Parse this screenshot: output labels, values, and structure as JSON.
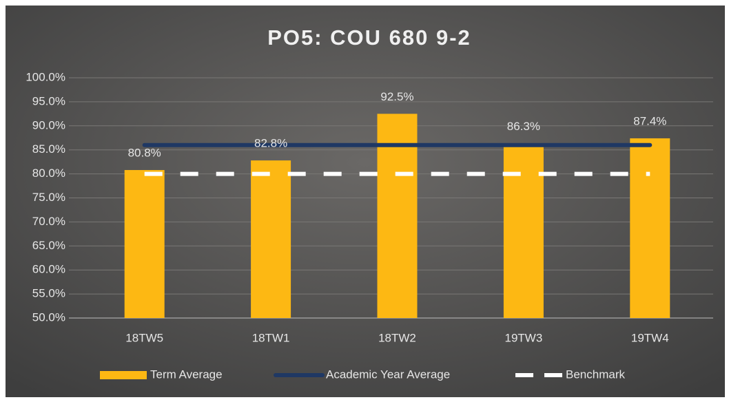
{
  "chart_data": {
    "type": "bar",
    "title": "PO5: COU 680 9-2",
    "categories": [
      "18TW5",
      "18TW1",
      "18TW2",
      "19TW3",
      "19TW4"
    ],
    "series": [
      {
        "name": "Term Average",
        "type": "bar",
        "color": "#fdb813",
        "values": [
          80.8,
          82.8,
          92.5,
          86.3,
          87.4
        ],
        "value_labels": [
          "80.8%",
          "82.8%",
          "92.5%",
          "86.3%",
          "87.4%"
        ]
      },
      {
        "name": "Academic Year Average",
        "type": "line",
        "color": "#1f3864",
        "values": [
          86.0,
          86.0,
          86.0,
          86.0,
          86.0
        ]
      },
      {
        "name": "Benchmark",
        "type": "line",
        "style": "dashed",
        "color": "#ffffff",
        "values": [
          80.0,
          80.0,
          80.0,
          80.0,
          80.0
        ]
      }
    ],
    "ylim": [
      50,
      100
    ],
    "yticks": [
      {
        "value": 50,
        "label": "50.0%"
      },
      {
        "value": 55,
        "label": "55.0%"
      },
      {
        "value": 60,
        "label": "60.0%"
      },
      {
        "value": 65,
        "label": "65.0%"
      },
      {
        "value": 70,
        "label": "70.0%"
      },
      {
        "value": 75,
        "label": "75.0%"
      },
      {
        "value": 80,
        "label": "80.0%"
      },
      {
        "value": 85,
        "label": "85.0%"
      },
      {
        "value": 90,
        "label": "90.0%"
      },
      {
        "value": 95,
        "label": "95.0%"
      },
      {
        "value": 100,
        "label": "100.0%"
      }
    ],
    "grid": true,
    "legend": "bottom"
  }
}
